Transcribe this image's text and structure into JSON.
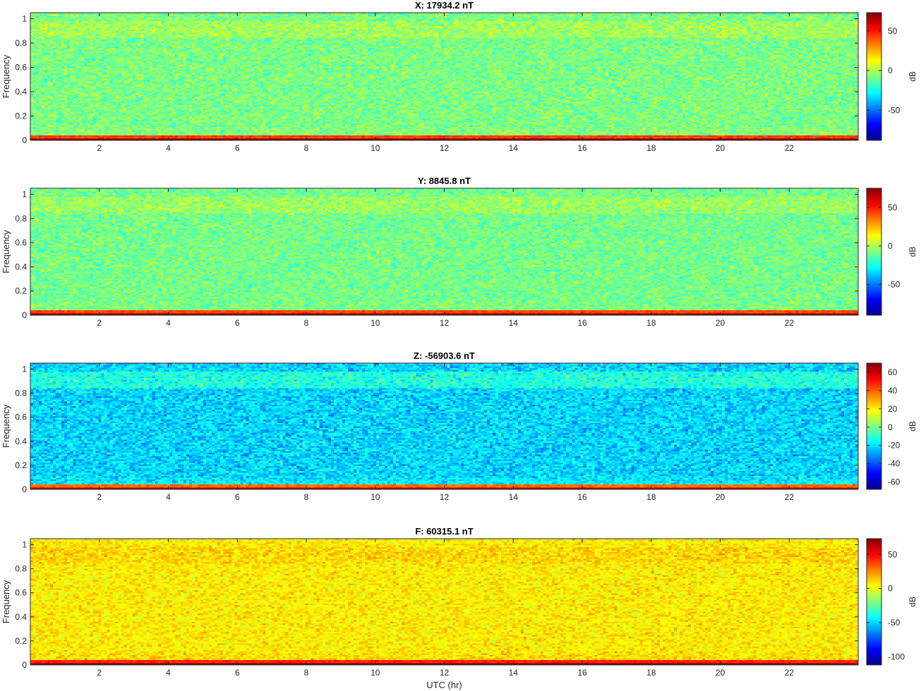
{
  "chart_data": [
    {
      "type": "heatmap",
      "title": "X: 17934.2 nT",
      "ylabel": "Frequency",
      "xlabel": "",
      "xlim": [
        0,
        24
      ],
      "ylim": [
        0,
        1.05
      ],
      "xticks": [
        "2",
        "4",
        "6",
        "8",
        "10",
        "12",
        "14",
        "16",
        "18",
        "20",
        "22"
      ],
      "yticks": [
        "0",
        "0.2",
        "0.4",
        "0.6",
        "0.8",
        "1"
      ],
      "colorbar": {
        "label": "dB",
        "min": -88,
        "max": 73,
        "ticks": [
          "50",
          "0",
          "-50"
        ],
        "tick_values": [
          50,
          0,
          -50
        ]
      },
      "profile": {
        "base": -8,
        "noise": 9,
        "band_high": 6,
        "low_hump": 4,
        "bottom_red": 70
      }
    },
    {
      "type": "heatmap",
      "title": "Y: 8845.8 nT",
      "ylabel": "Frequency",
      "xlabel": "",
      "xlim": [
        0,
        24
      ],
      "ylim": [
        0,
        1.05
      ],
      "xticks": [
        "2",
        "4",
        "6",
        "8",
        "10",
        "12",
        "14",
        "16",
        "18",
        "20",
        "22"
      ],
      "yticks": [
        "0",
        "0.2",
        "0.4",
        "0.6",
        "0.8",
        "1"
      ],
      "colorbar": {
        "label": "dB",
        "min": -90,
        "max": 75,
        "ticks": [
          "50",
          "0",
          "-50"
        ],
        "tick_values": [
          50,
          0,
          -50
        ]
      },
      "profile": {
        "base": -9,
        "noise": 9,
        "band_high": 6,
        "low_hump": 4,
        "bottom_red": 70
      }
    },
    {
      "type": "heatmap",
      "title": "Z: -56903.6 nT",
      "ylabel": "Frequency",
      "xlabel": "",
      "xlim": [
        0,
        24
      ],
      "ylim": [
        0,
        1.05
      ],
      "xticks": [
        "2",
        "4",
        "6",
        "8",
        "10",
        "12",
        "14",
        "16",
        "18",
        "20",
        "22"
      ],
      "yticks": [
        "0",
        "0.2",
        "0.4",
        "0.6",
        "0.8",
        "1"
      ],
      "colorbar": {
        "label": "dB",
        "min": -68,
        "max": 70,
        "ticks": [
          "60",
          "40",
          "20",
          "0",
          "-20",
          "-40",
          "-60"
        ],
        "tick_values": [
          60,
          40,
          20,
          0,
          -20,
          -40,
          -60
        ]
      },
      "profile": {
        "base": -22,
        "noise": 9,
        "band_high": 10,
        "low_hump": 8,
        "bottom_red": 60
      }
    },
    {
      "type": "heatmap",
      "title": "F: 60315.1 nT",
      "ylabel": "Frequency",
      "xlabel": "UTC (hr)",
      "xlim": [
        0,
        24
      ],
      "ylim": [
        0,
        1.05
      ],
      "xticks": [
        "2",
        "4",
        "6",
        "8",
        "10",
        "12",
        "14",
        "16",
        "18",
        "20",
        "22"
      ],
      "yticks": [
        "0",
        "0.2",
        "0.4",
        "0.6",
        "0.8",
        "1"
      ],
      "colorbar": {
        "label": "dB",
        "min": -112,
        "max": 73,
        "ticks": [
          "50",
          "0",
          "-50",
          "-100"
        ],
        "tick_values": [
          50,
          0,
          -50,
          -100
        ]
      },
      "profile": {
        "base": 7,
        "noise": 9,
        "band_high": 4,
        "low_hump": 6,
        "bottom_red": 70
      }
    }
  ]
}
